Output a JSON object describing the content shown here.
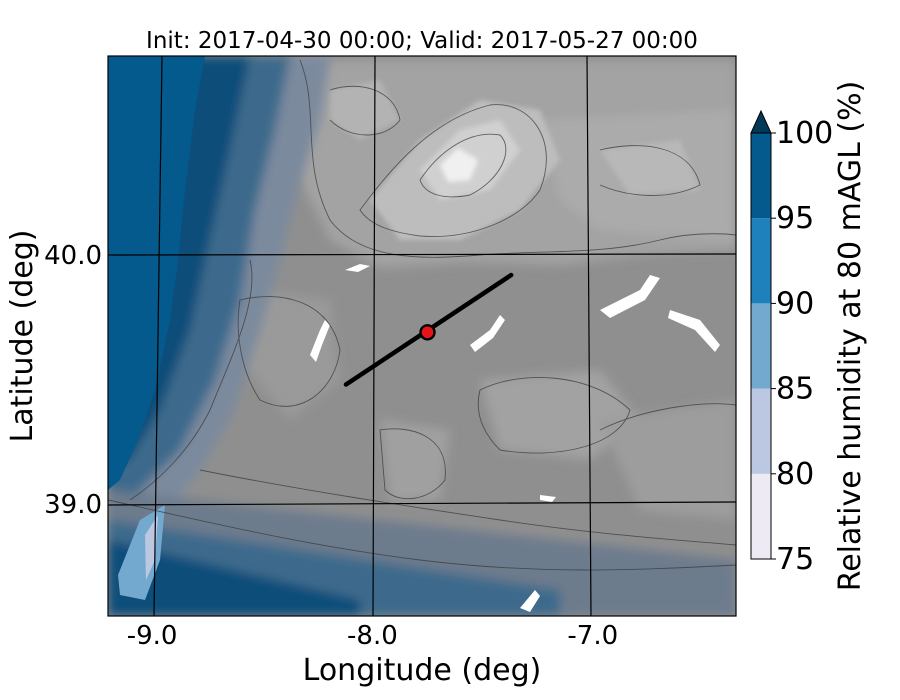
{
  "map": {
    "title": "Init: 2017-04-30 00:00; Valid: 2017-05-27 00:00",
    "x_axis": {
      "label": "Longitude (deg)",
      "ticks": [
        {
          "value": -9.0,
          "label": "-9.0"
        },
        {
          "value": -8.0,
          "label": "-8.0"
        },
        {
          "value": -7.0,
          "label": "-7.0"
        }
      ],
      "range": [
        -9.2,
        -6.35
      ]
    },
    "y_axis": {
      "label": "Latitude (deg)",
      "ticks": [
        {
          "value": 40.0,
          "label": "40.0"
        },
        {
          "value": 39.0,
          "label": "39.0"
        }
      ],
      "range": [
        38.55,
        40.8
      ]
    },
    "marker": {
      "lon": -7.75,
      "lat": 39.69,
      "color": "#e8141c",
      "edge_color": "#000000"
    },
    "cross_section_line": {
      "start": [
        -8.12,
        39.48
      ],
      "end": [
        -7.37,
        39.92
      ],
      "color": "#000000"
    },
    "colorbar": {
      "label": "Relative humidity at 80 mAGL (%)",
      "ticks": [
        "75",
        "80",
        "85",
        "90",
        "95",
        "100"
      ],
      "levels": [
        75,
        80,
        85,
        90,
        95,
        100
      ],
      "colors": [
        "#eeeaf4",
        "#bcc7e1",
        "#74a9cf",
        "#1e81bb",
        "#045a8d",
        "#023858"
      ],
      "extend": "max"
    },
    "terrain_colors": {
      "lowland": "#8f8f8f",
      "hills": "#a6a6a6",
      "mountain": "#c9c9c9",
      "peak": "#eeeeee"
    },
    "sea_color": "#045a8d"
  }
}
